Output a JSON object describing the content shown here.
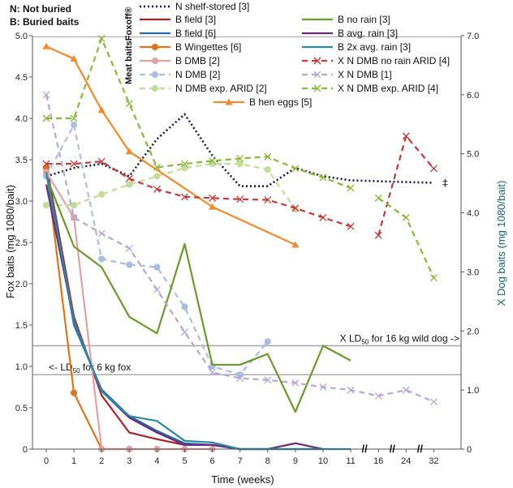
{
  "chart_data": {
    "type": "line",
    "title": "",
    "header_notes": [
      "N: Not buried",
      "B: Buried baits"
    ],
    "side_label": "Meat baits",
    "side_label_trademark": "Foxoff®",
    "xlabel": "Time (weeks)",
    "ylabel_left": "Fox baits (mg 1080/bait)",
    "ylabel_right": "X Dog baits (mg 1080/bait)",
    "x_positions": [
      0,
      1,
      2,
      3,
      4,
      5,
      6,
      7,
      8,
      9,
      10,
      11,
      12,
      13,
      14
    ],
    "x_tick_labels": [
      "0",
      "1",
      "2",
      "3",
      "4",
      "5",
      "6",
      "7",
      "8",
      "9",
      "10",
      "11",
      "16",
      "24",
      "32"
    ],
    "axis_break_marks": [
      "//",
      "//",
      "//"
    ],
    "ylim_left": [
      0,
      5
    ],
    "ylim_right": [
      0,
      7
    ],
    "yticks_left": [
      "0",
      "0.5",
      "1.0",
      "1.5",
      "2.0",
      "2.5",
      "3.0",
      "3.5",
      "4.0",
      "4.5",
      "5.0"
    ],
    "yticks_right": [
      "0",
      "1.0",
      "2.0",
      "3.0",
      "4.0",
      "5.0",
      "6.0",
      "7.0"
    ],
    "reference_lines": [
      {
        "axis": "left",
        "value": 0.9,
        "label": "<- LD",
        "sub": "50",
        "label_tail": " for 6 kg fox"
      },
      {
        "axis": "left",
        "value": 1.25,
        "label": "X LD",
        "sub": "50",
        "label_tail": " for 16 kg wild dog ->"
      }
    ],
    "series": [
      {
        "name": "N shelf-stored [3]",
        "axis": "left",
        "color": "#1a1a3a",
        "style": "dotted",
        "marker": "none",
        "x": [
          0,
          1,
          2,
          3,
          4,
          5,
          6,
          7,
          8,
          9,
          10,
          11,
          12,
          13,
          14
        ],
        "values": [
          3.3,
          3.4,
          3.45,
          3.3,
          3.75,
          4.05,
          3.55,
          3.18,
          3.18,
          3.4,
          3.3,
          3.25,
          3.24,
          3.23,
          3.22
        ]
      },
      {
        "name": "B field [3]",
        "axis": "left",
        "color": "#a8232a",
        "style": "solid",
        "marker": "none",
        "x": [
          0,
          1,
          2,
          3,
          4,
          5,
          6,
          7
        ],
        "values": [
          3.45,
          1.6,
          0.65,
          0.2,
          0.12,
          0.05,
          0.05,
          0.0
        ]
      },
      {
        "name": "B field [6]",
        "axis": "left",
        "color": "#2a6aa6",
        "style": "solid",
        "marker": "none",
        "x": [
          0,
          1,
          2,
          3,
          4,
          5,
          6,
          7,
          8,
          9,
          10
        ],
        "values": [
          3.4,
          1.5,
          0.72,
          0.4,
          0.22,
          0.07,
          0.05,
          0.0,
          0.0,
          0.0,
          0.0
        ]
      },
      {
        "name": "N DMB [2]",
        "axis": "left",
        "color": "#a9bedf",
        "style": "dashed",
        "marker": "circle",
        "x": [
          0,
          1,
          2,
          3,
          4,
          5,
          6,
          7,
          8
        ],
        "values": [
          3.3,
          3.92,
          2.3,
          2.23,
          2.2,
          1.72,
          1.0,
          0.9,
          1.3
        ]
      },
      {
        "name": "B Wingettes [6]",
        "axis": "left",
        "color": "#d8761e",
        "style": "solid",
        "marker": "circle",
        "x": [
          0,
          1,
          2,
          3
        ],
        "values": [
          3.4,
          0.68,
          0.0,
          0.0
        ]
      },
      {
        "name": "B DMB [2]",
        "axis": "left",
        "color": "#dfa3a3",
        "style": "solid",
        "marker": "circle",
        "x": [
          0,
          1,
          2,
          3,
          4,
          5,
          6
        ],
        "values": [
          3.35,
          2.8,
          0.0,
          0.0,
          0.0,
          0.0,
          0.0
        ]
      },
      {
        "name": "N DMB exp. ARID [2]",
        "axis": "left",
        "color": "#c3dc9a",
        "style": "dashed",
        "marker": "circle",
        "x": [
          0,
          1,
          2,
          3,
          4,
          5,
          6,
          7,
          8,
          9
        ],
        "values": [
          2.95,
          2.95,
          3.08,
          3.2,
          3.3,
          3.4,
          3.45,
          3.45,
          3.38,
          2.9
        ]
      },
      {
        "name": "B hen eggs [5]",
        "axis": "left",
        "color": "#f08a2c",
        "style": "solid",
        "marker": "triangle",
        "x": [
          0,
          1,
          2,
          3,
          6,
          9
        ],
        "values": [
          4.87,
          4.72,
          4.1,
          3.6,
          2.93,
          2.47
        ]
      },
      {
        "name": "B no rain [3]",
        "axis": "left",
        "color": "#6a9a2c",
        "style": "solid",
        "marker": "none",
        "x": [
          0,
          1,
          2,
          3,
          4,
          5,
          6,
          7,
          8,
          9,
          10,
          11
        ],
        "values": [
          3.3,
          2.45,
          2.2,
          1.6,
          1.4,
          2.48,
          1.02,
          1.02,
          1.15,
          0.45,
          1.25,
          1.07
        ]
      },
      {
        "name": "B avg. rain [3]",
        "axis": "left",
        "color": "#6b2a7a",
        "style": "solid",
        "marker": "none",
        "x": [
          0,
          1,
          2,
          3,
          4,
          5,
          6,
          7,
          8,
          9,
          10
        ],
        "values": [
          3.2,
          1.55,
          0.7,
          0.38,
          0.2,
          0.05,
          0.05,
          0.0,
          0.0,
          0.07,
          0.0
        ]
      },
      {
        "name": "B 2x avg. rain [3]",
        "axis": "left",
        "color": "#2a8aa6",
        "style": "solid",
        "marker": "none",
        "x": [
          0,
          1,
          2,
          3,
          4,
          5,
          6,
          7,
          8,
          9,
          10,
          11
        ],
        "values": [
          3.35,
          1.55,
          0.7,
          0.4,
          0.34,
          0.1,
          0.08,
          0.0,
          0.0,
          0.0,
          0.0,
          0.0
        ]
      },
      {
        "name": "X N DMB no rain ARID [4]",
        "axis": "right",
        "color": "#c23a3a",
        "style": "dashed",
        "marker": "x",
        "x": [
          0,
          1,
          2,
          3,
          4,
          5,
          6,
          7,
          8,
          9,
          10,
          11,
          null,
          12,
          13,
          14
        ],
        "values": [
          4.83,
          4.83,
          4.87,
          4.58,
          4.4,
          4.27,
          4.25,
          4.23,
          4.22,
          4.08,
          3.92,
          3.77,
          null,
          3.62,
          5.3,
          4.75
        ]
      },
      {
        "name": "X N DMB [1]",
        "axis": "right",
        "color": "#b9a6d6",
        "style": "dashed",
        "marker": "x",
        "x": [
          0,
          1,
          2,
          3,
          4,
          5,
          6,
          7,
          8,
          9,
          10,
          11,
          12,
          13,
          14
        ],
        "values": [
          6.0,
          3.92,
          3.65,
          3.4,
          2.7,
          1.98,
          1.3,
          1.2,
          1.17,
          1.12,
          1.05,
          1.0,
          0.9,
          1.0,
          0.8
        ]
      },
      {
        "name": "X N DMB exp. ARID [4]",
        "axis": "right",
        "color": "#86b83a",
        "style": "dashed",
        "marker": "x",
        "x": [
          0,
          1,
          2,
          3,
          4,
          5,
          6,
          7,
          8,
          9,
          10,
          11,
          null,
          12,
          13,
          14
        ],
        "values": [
          5.6,
          5.6,
          6.95,
          5.85,
          4.77,
          4.83,
          4.88,
          4.92,
          4.95,
          4.75,
          4.6,
          4.42,
          null,
          4.25,
          3.92,
          2.9
        ]
      }
    ]
  },
  "legend_rows": [
    [
      "B field [3]",
      "B no rain [3]"
    ],
    [
      "B field [6]",
      "B avg. rain [3]"
    ],
    [
      "B Wingettes [6]",
      "B 2x avg. rain [3]"
    ],
    [
      "B DMB [2]",
      "X N DMB no rain ARID [4]"
    ],
    [
      "N DMB [2]",
      "X N DMB [1]"
    ],
    [
      "N DMB exp. ARID [2]",
      "X N DMB exp. ARID [4]"
    ]
  ],
  "legend_top": [
    "N shelf-stored [3]"
  ],
  "legend_bottom": [
    "B hen eggs [5]"
  ],
  "colors": {
    "axis": "#555555",
    "refline": "#a6a6a6",
    "text": "#222222"
  }
}
